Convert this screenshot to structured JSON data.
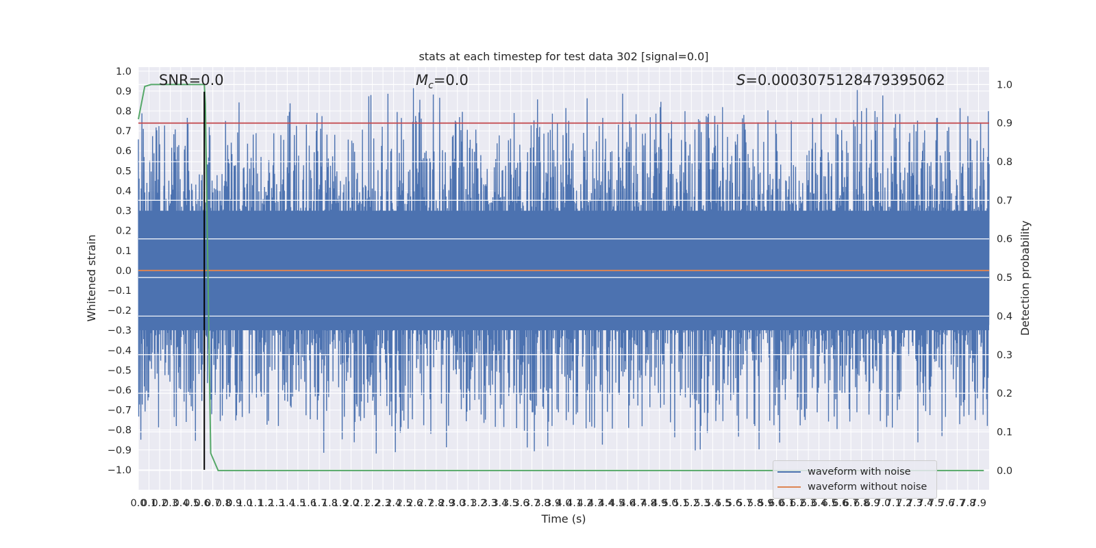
{
  "chart_data": {
    "type": "line",
    "title": "stats at each timestep for test data 302 [signal=0.0]",
    "xlabel": "Time (s)",
    "ylabel": "Whitened strain",
    "y2label": "Detection probability",
    "annotations": {
      "snr": "SNR=0.0",
      "mc": "=0.0",
      "s": "=0.0003075128479395062"
    },
    "xlim": [
      0,
      8
    ],
    "ylim": [
      -1.1,
      1.02
    ],
    "y2lim": [
      -0.05,
      1.045
    ],
    "x_ticks": [
      "0.0",
      "0.1",
      "0.2",
      "0.3",
      "0.4",
      "0.5",
      "0.6",
      "0.7",
      "0.8",
      "0.9",
      "1.0",
      "1.1",
      "1.2",
      "1.3",
      "1.4",
      "1.5",
      "1.6",
      "1.7",
      "1.8",
      "1.9",
      "2.0",
      "2.1",
      "2.2",
      "2.3",
      "2.4",
      "2.5",
      "2.6",
      "2.7",
      "2.8",
      "2.9",
      "3.0",
      "3.1",
      "3.2",
      "3.3",
      "3.4",
      "3.5",
      "3.6",
      "3.7",
      "3.8",
      "3.9",
      "4.0",
      "4.1",
      "4.2",
      "4.3",
      "4.4",
      "4.5",
      "4.6",
      "4.7",
      "4.8",
      "4.9",
      "5.0",
      "5.1",
      "5.2",
      "5.3",
      "5.4",
      "5.5",
      "5.6",
      "5.7",
      "5.8",
      "5.9",
      "6.0",
      "6.1",
      "6.2",
      "6.3",
      "6.4",
      "6.5",
      "6.6",
      "6.7",
      "6.8",
      "6.9",
      "7.0",
      "7.1",
      "7.2",
      "7.3",
      "7.4",
      "7.5",
      "7.6",
      "7.7",
      "7.8",
      "7.9"
    ],
    "y_ticks": [
      "1.0",
      "0.9",
      "0.8",
      "0.7",
      "0.6",
      "0.5",
      "0.4",
      "0.3",
      "0.2",
      "0.1",
      "0.0",
      "−0.1",
      "−0.2",
      "−0.3",
      "−0.4",
      "−0.5",
      "−0.6",
      "−0.7",
      "−0.8",
      "−0.9",
      "−1.0"
    ],
    "y2_ticks": [
      "1.0",
      "0.9",
      "0.8",
      "0.7",
      "0.6",
      "0.5",
      "0.4",
      "0.3",
      "0.2",
      "0.1",
      "0.0"
    ],
    "series": [
      {
        "name": "waveform with noise",
        "color": "#4c72b0",
        "axis": "left",
        "description_values": {
          "approx_min": -1.0,
          "approx_max": 0.92
        },
        "core_band": [
          -0.3,
          0.3
        ]
      },
      {
        "name": "waveform without noise",
        "color": "#dd8452",
        "axis": "left",
        "x": [
          0,
          8
        ],
        "y": [
          0.0,
          0.0
        ]
      },
      {
        "name": "",
        "color": "#55a868",
        "axis": "right",
        "x": [
          0.0,
          0.06,
          0.12,
          0.2,
          0.3,
          0.4,
          0.5,
          0.62,
          0.63,
          0.68,
          0.75,
          1.0,
          2.0,
          3.0,
          4.0,
          5.0,
          6.0,
          7.0,
          7.95
        ],
        "y": [
          0.91,
          0.995,
          1.0,
          1.0,
          1.0,
          1.0,
          1.0,
          1.0,
          0.95,
          0.045,
          0.0,
          0.0,
          0.0,
          0.0,
          0.0,
          0.0,
          0.0,
          0.0,
          0.0
        ]
      },
      {
        "name": "",
        "color": "#c44e52",
        "axis": "right",
        "x": [
          0,
          8
        ],
        "y": [
          0.9,
          0.9
        ]
      }
    ],
    "vertical_line": {
      "x": 0.62,
      "color": "#000000"
    },
    "grid": true,
    "legend_position": "lower right"
  }
}
